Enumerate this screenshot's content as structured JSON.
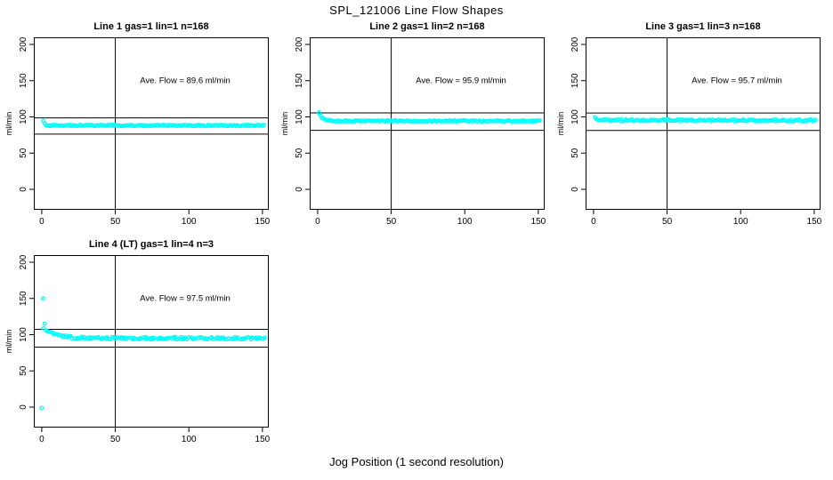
{
  "main": {
    "title": "SPL_121006  Line Flow Shapes",
    "xlabel": "Jog Position (1 second resolution)"
  },
  "colors": {
    "marker": "#00FFFF",
    "axis": "#000000",
    "background": "#FFFFFF"
  },
  "chart_data": [
    {
      "type": "scatter",
      "title": "Line 1 gas=1 lin=1 n=168",
      "ylabel": "ml/min",
      "annotation": "Ave. Flow =  89.6  ml/min",
      "ave_flow_ml_min": 89.6,
      "n": 168,
      "x_ticks": [
        0,
        50,
        100,
        150
      ],
      "y_ticks": [
        0,
        50,
        100,
        150,
        200
      ],
      "xlim": [
        -5.4,
        154.3
      ],
      "ylim": [
        -28.2,
        209.8
      ],
      "v_ref_line_x": 50,
      "h_ref_line_upper": 98.6,
      "h_ref_line_lower": 76.2,
      "band": {
        "seed": 11,
        "n_points": 151,
        "x_start": 1,
        "x_end": 151,
        "y_base": 88.1,
        "start_amp": 5.5,
        "decay": 1.2,
        "y_jitter": 0.9,
        "x_jitter": 0
      },
      "key_points": []
    },
    {
      "type": "scatter",
      "title": "Line 2 gas=1 lin=2 n=168",
      "ylabel": "ml/min",
      "annotation": "Ave. Flow =  95.9  ml/min",
      "ave_flow_ml_min": 95.9,
      "n": 168,
      "x_ticks": [
        0,
        50,
        100,
        150
      ],
      "y_ticks": [
        0,
        50,
        100,
        150,
        200
      ],
      "xlim": [
        -5.4,
        154.3
      ],
      "ylim": [
        -28.2,
        209.8
      ],
      "v_ref_line_x": 50,
      "h_ref_line_upper": 105.5,
      "h_ref_line_lower": 81.5,
      "band": {
        "seed": 22,
        "n_points": 151,
        "x_start": 1,
        "x_end": 151,
        "y_base": 94.3,
        "start_amp": 11,
        "decay": 2.5,
        "y_jitter": 0.9,
        "x_jitter": 0
      },
      "key_points": [
        [
          1,
          105
        ]
      ]
    },
    {
      "type": "scatter",
      "title": "Line 3 gas=1 lin=3 n=168",
      "ylabel": "ml/min",
      "annotation": "Ave. Flow =  95.7  ml/min",
      "ave_flow_ml_min": 95.7,
      "n": 168,
      "x_ticks": [
        0,
        50,
        100,
        150
      ],
      "y_ticks": [
        0,
        50,
        100,
        150,
        200
      ],
      "xlim": [
        -5.4,
        154.3
      ],
      "ylim": [
        -28.2,
        209.8
      ],
      "v_ref_line_x": 50,
      "h_ref_line_upper": 105.3,
      "h_ref_line_lower": 81.3,
      "band": {
        "seed": 33,
        "n_points": 151,
        "x_start": 1,
        "x_end": 151,
        "y_base": 95.2,
        "start_amp": 3.5,
        "decay": 2.0,
        "y_jitter": 1.3,
        "x_jitter": 0
      },
      "key_points": []
    },
    {
      "type": "scatter",
      "title": "Line 4 (LT) gas=1 lin=4 n=3",
      "ylabel": "ml/min",
      "annotation": "Ave. Flow =  97.5  ml/min",
      "ave_flow_ml_min": 97.5,
      "n": 3,
      "x_ticks": [
        0,
        50,
        100,
        150
      ],
      "y_ticks": [
        0,
        50,
        100,
        150,
        200
      ],
      "xlim": [
        -5.4,
        154.3
      ],
      "ylim": [
        -28.2,
        209.8
      ],
      "v_ref_line_x": 50,
      "h_ref_line_upper": 107.3,
      "h_ref_line_lower": 82.9,
      "band": {
        "seed": 44,
        "n_points": 150,
        "x_start": 2,
        "x_end": 151,
        "y_base": 95.0,
        "start_amp": 13,
        "decay": 8,
        "y_jitter": 1.7,
        "x_jitter": 0.8
      },
      "key_points": [
        [
          1,
          150
        ],
        [
          2,
          115
        ],
        [
          0,
          -1
        ]
      ]
    }
  ]
}
